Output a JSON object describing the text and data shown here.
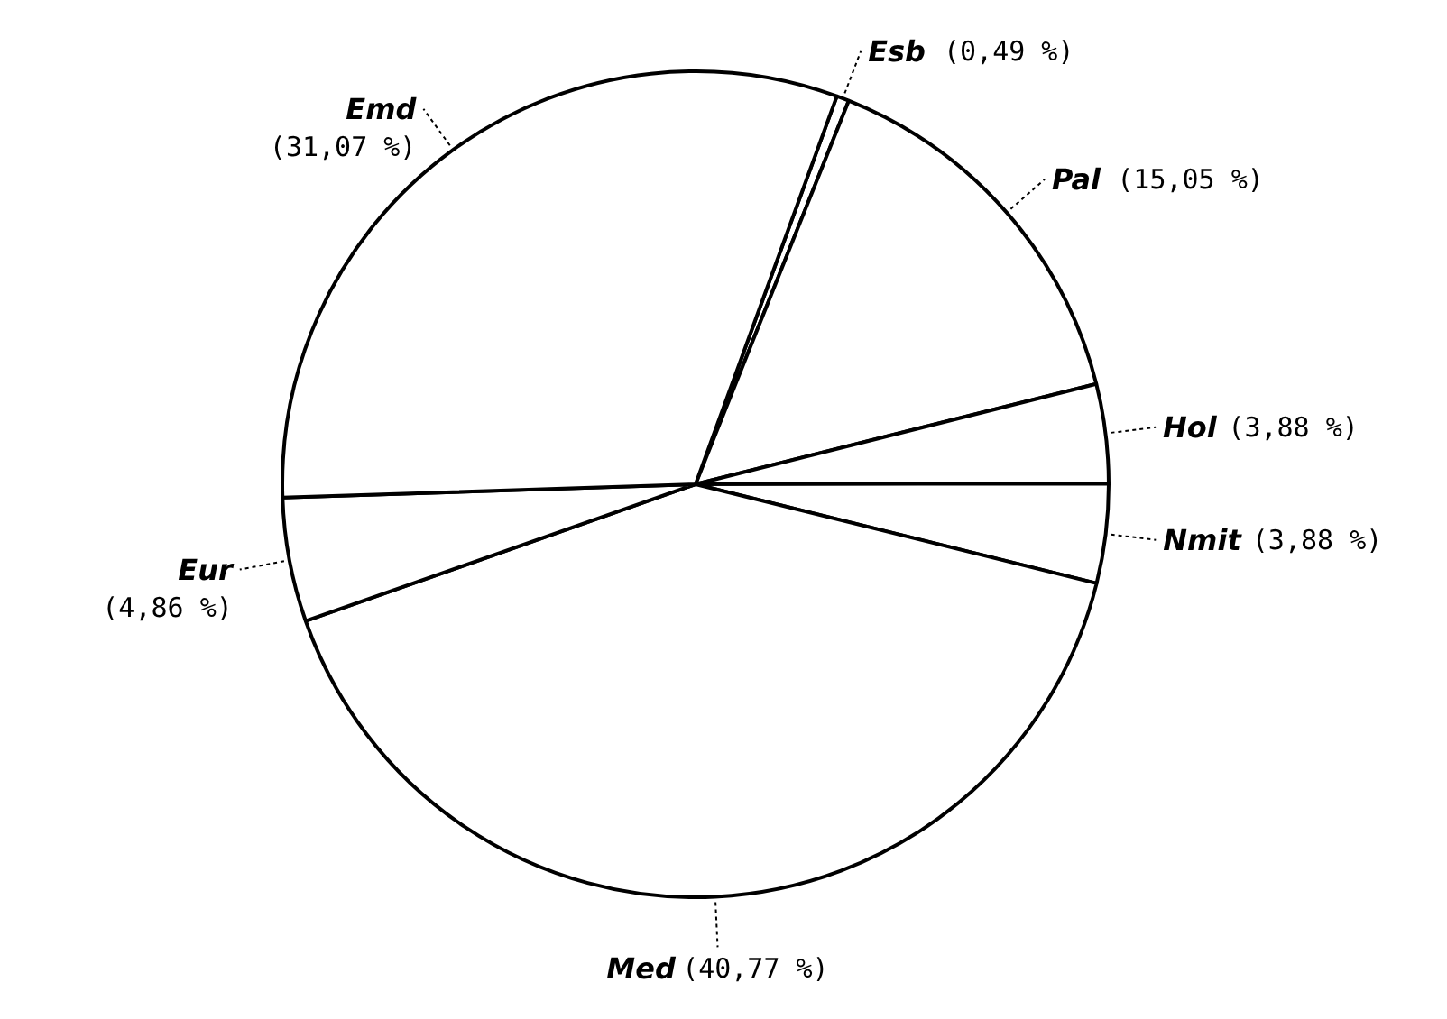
{
  "chart_data": {
    "type": "pie",
    "categories": [
      "Esb",
      "Pal",
      "Hol",
      "Nmit",
      "Med",
      "Eur",
      "Emd"
    ],
    "values": [
      0.49,
      15.05,
      3.88,
      3.88,
      40.77,
      4.86,
      31.07
    ],
    "value_labels": [
      "(0,49 %)",
      "(15,05 %)",
      "(3,88 %)",
      "(3,88 %)",
      "(40,77 %)",
      "(4,86 %)",
      "(31,07 %)"
    ],
    "colors": [
      "#ffffff",
      "#ffffff",
      "#ffffff",
      "#ffffff",
      "#ffffff",
      "#ffffff",
      "#ffffff"
    ]
  }
}
